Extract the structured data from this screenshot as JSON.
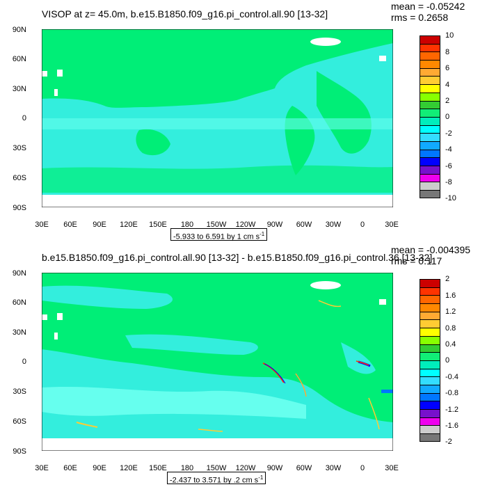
{
  "panels": [
    {
      "title": "VISOP at z=  45.0m, b.e15.B1850.f09_g16.pi_control.all.90 [13-32]",
      "mean": "mean = -0.05242",
      "rms": "rms = 0.2658",
      "lat_labels": [
        "90N",
        "60N",
        "30N",
        "0",
        "30S",
        "60S",
        "90S"
      ],
      "lon_labels": [
        "30E",
        "60E",
        "90E",
        "120E",
        "150E",
        "180",
        "150W",
        "120W",
        "90W",
        "60W",
        "30W",
        "0",
        "30E"
      ],
      "colorbar_labels": [
        "10",
        "8",
        "6",
        "4",
        "2",
        "0",
        "-2",
        "-4",
        "-6",
        "-8",
        "-10"
      ],
      "colors": [
        "#cc0000",
        "#ff3300",
        "#ff6600",
        "#ff8800",
        "#ffaa33",
        "#ffcc33",
        "#ffff00",
        "#88ff00",
        "#33cc33",
        "#11ee77",
        "#00eebb",
        "#00ffff",
        "#33ddff",
        "#11aaff",
        "#0077ff",
        "#0000ff",
        "#7711cc",
        "#ee00ee",
        "#cccccc",
        "#777777"
      ],
      "range_prefix": "-5.933 to 6.591 by 1 cm s",
      "range_exp": "-1"
    },
    {
      "title": "b.e15.B1850.f09_g16.pi_control.all.90 [13-32] - b.e15.B1850.f09_g16.pi_control.36 [13-32]",
      "mean": "mean = -0.004395",
      "rms": "rms = 0.117",
      "lat_labels": [
        "90N",
        "60N",
        "30N",
        "0",
        "30S",
        "60S",
        "90S"
      ],
      "lon_labels": [
        "30E",
        "60E",
        "90E",
        "120E",
        "150E",
        "180",
        "150W",
        "120W",
        "90W",
        "60W",
        "30W",
        "0",
        "30E"
      ],
      "colorbar_labels": [
        "2",
        "1.6",
        "1.2",
        "0.8",
        "0.4",
        "0",
        "-0.4",
        "-0.8",
        "-1.2",
        "-1.6",
        "-2"
      ],
      "colors": [
        "#cc0000",
        "#ff3300",
        "#ff6600",
        "#ff8800",
        "#ffaa33",
        "#ffcc33",
        "#ffff00",
        "#88ff00",
        "#33cc33",
        "#11ee77",
        "#00eebb",
        "#00ffff",
        "#33ddff",
        "#11aaff",
        "#0077ff",
        "#0000ff",
        "#7711cc",
        "#ee00ee",
        "#cccccc",
        "#777777"
      ],
      "range_prefix": "-2.437 to 3.571 by .2 cm s",
      "range_exp": "-1"
    }
  ],
  "map_colors": {
    "land": "#00ee77",
    "ocean_cyan": "#33eedd",
    "ocean_light": "#66ffee",
    "no_data": "#ffffff"
  }
}
